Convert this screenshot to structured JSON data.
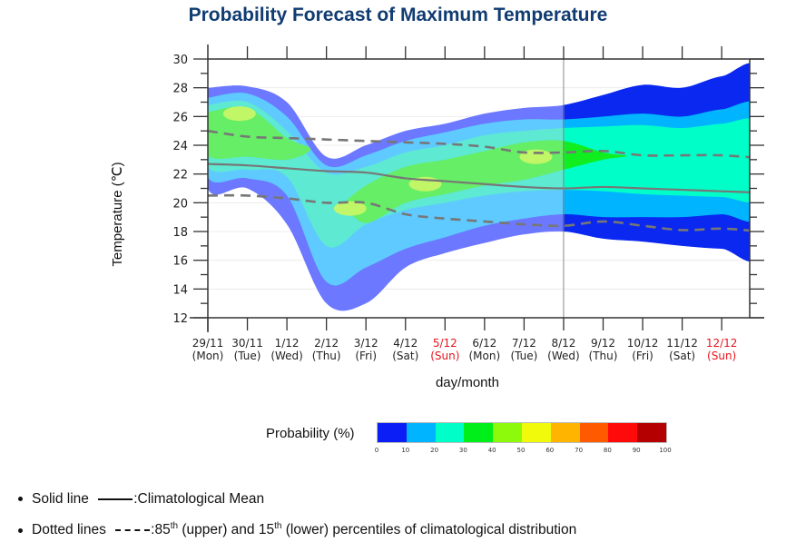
{
  "chart_data": {
    "type": "heatmap",
    "title": "Probability Forecast of Maximum Temperature",
    "xlabel": "day/month",
    "ylabel": "Temperature (℃)",
    "ylim": [
      12,
      30
    ],
    "yticks": [
      12,
      14,
      16,
      18,
      20,
      22,
      24,
      26,
      28,
      30
    ],
    "grid": true,
    "categories": [
      {
        "date": "29/11",
        "day": "(Mon)",
        "weekend": false
      },
      {
        "date": "30/11",
        "day": "(Tue)",
        "weekend": false
      },
      {
        "date": "1/12",
        "day": "(Wed)",
        "weekend": false
      },
      {
        "date": "2/12",
        "day": "(Thu)",
        "weekend": false
      },
      {
        "date": "3/12",
        "day": "(Fri)",
        "weekend": false
      },
      {
        "date": "4/12",
        "day": "(Sat)",
        "weekend": false
      },
      {
        "date": "5/12",
        "day": "(Sun)",
        "weekend": true
      },
      {
        "date": "6/12",
        "day": "(Mon)",
        "weekend": false
      },
      {
        "date": "7/12",
        "day": "(Tue)",
        "weekend": false
      },
      {
        "date": "8/12",
        "day": "(Wed)",
        "weekend": false
      },
      {
        "date": "9/12",
        "day": "(Thu)",
        "weekend": false
      },
      {
        "date": "10/12",
        "day": "(Fri)",
        "weekend": false
      },
      {
        "date": "11/12",
        "day": "(Sat)",
        "weekend": false
      },
      {
        "date": "12/12",
        "day": "(Sun)",
        "weekend": true
      }
    ],
    "divider_at_index": 9,
    "probability_bands": [
      {
        "level": "0-10",
        "color_left": "#6b78ff",
        "color_right": "#0a28f0",
        "upper": [
          28.0,
          28.1,
          27.0,
          23.2,
          24.0,
          25.0,
          25.5,
          26.2,
          26.6,
          26.8,
          27.5,
          28.2,
          28.0,
          28.8,
          28.8
        ],
        "lower": [
          21.0,
          21.0,
          18.5,
          13.0,
          13.0,
          15.5,
          16.5,
          17.2,
          17.8,
          18.0,
          17.5,
          17.3,
          17.0,
          16.8,
          16.8
        ]
      },
      {
        "level": "10-20",
        "color_left": "#5fcaff",
        "color_right": "#00b4ff",
        "upper": [
          27.3,
          27.6,
          26.0,
          22.6,
          23.3,
          24.3,
          24.9,
          25.5,
          25.8,
          25.8,
          26.0,
          26.2,
          26.0,
          26.5,
          26.5
        ],
        "lower": [
          21.8,
          21.7,
          20.5,
          14.5,
          15.5,
          16.8,
          17.6,
          18.4,
          18.9,
          19.2,
          19.0,
          19.0,
          19.0,
          19.2,
          19.2
        ]
      },
      {
        "level": "20-30",
        "color_left": "#5de9d2",
        "color_right": "#00ffc8",
        "upper": [
          26.8,
          27.0,
          25.0,
          22.1,
          22.5,
          23.5,
          24.0,
          24.7,
          25.0,
          25.2,
          25.3,
          25.4,
          25.2,
          25.5,
          25.5
        ],
        "lower": [
          22.5,
          22.3,
          21.8,
          17.0,
          18.5,
          19.5,
          20.0,
          20.5,
          20.8,
          20.9,
          20.8,
          20.6,
          20.5,
          20.4,
          20.4
        ]
      },
      {
        "level": "30-40",
        "color_left": "#66ee66",
        "color_right": "#10ee20",
        "upper": [
          26.3,
          26.6,
          24.5,
          null,
          21.2,
          22.5,
          23.0,
          23.6,
          24.2,
          24.3,
          23.5,
          null,
          null,
          null,
          null
        ],
        "lower": [
          23.3,
          23.2,
          23.0,
          null,
          18.6,
          20.0,
          20.6,
          21.2,
          21.6,
          22.3,
          23.0,
          null,
          null,
          null,
          null
        ]
      },
      {
        "level": "40-50",
        "color_left": "#c6f566",
        "color_right": "#c6f566",
        "peaks": [
          {
            "x": 0.8,
            "y": 26.2
          },
          {
            "x": 3.6,
            "y": 19.6
          },
          {
            "x": 5.5,
            "y": 21.3
          },
          {
            "x": 8.3,
            "y": 23.2
          }
        ]
      }
    ],
    "series": [
      {
        "name": "Climatological Mean",
        "style": "solid",
        "values": [
          22.7,
          22.6,
          22.4,
          22.2,
          22.1,
          21.7,
          21.5,
          21.3,
          21.1,
          21.0,
          21.1,
          21.0,
          20.9,
          20.8,
          20.7
        ]
      },
      {
        "name": "85th percentile",
        "style": "dashed",
        "values": [
          25.0,
          24.6,
          24.5,
          24.4,
          24.3,
          24.2,
          24.1,
          23.9,
          23.5,
          23.5,
          23.6,
          23.3,
          23.3,
          23.3,
          23.1
        ]
      },
      {
        "name": "15th percentile",
        "style": "dashed",
        "values": [
          20.5,
          20.5,
          20.3,
          20.0,
          20.0,
          19.2,
          18.9,
          18.7,
          18.5,
          18.4,
          18.7,
          18.4,
          18.1,
          18.2,
          18.0
        ]
      }
    ],
    "colorbar": {
      "label": "Probability (%)",
      "colors": [
        "#0a1ef5",
        "#00b4ff",
        "#00ffc8",
        "#00ee1a",
        "#8cfa0a",
        "#f0fa0a",
        "#ffb400",
        "#ff5a00",
        "#ff0a0a",
        "#b40000"
      ],
      "ticks": [
        "0",
        "10",
        "20",
        "30",
        "40",
        "50",
        "60",
        "70",
        "80",
        "90",
        "100"
      ]
    }
  },
  "notes": {
    "solid": {
      "prefix": "Solid line ",
      "suffix": ":Climatological Mean"
    },
    "dotted": {
      "prefix": "Dotted lines ",
      "mid1": ":85",
      "sup1": "th",
      "mid2": " (upper) and 15",
      "sup2": "th",
      "suffix": " (lower) percentiles of climatological distribution"
    }
  }
}
